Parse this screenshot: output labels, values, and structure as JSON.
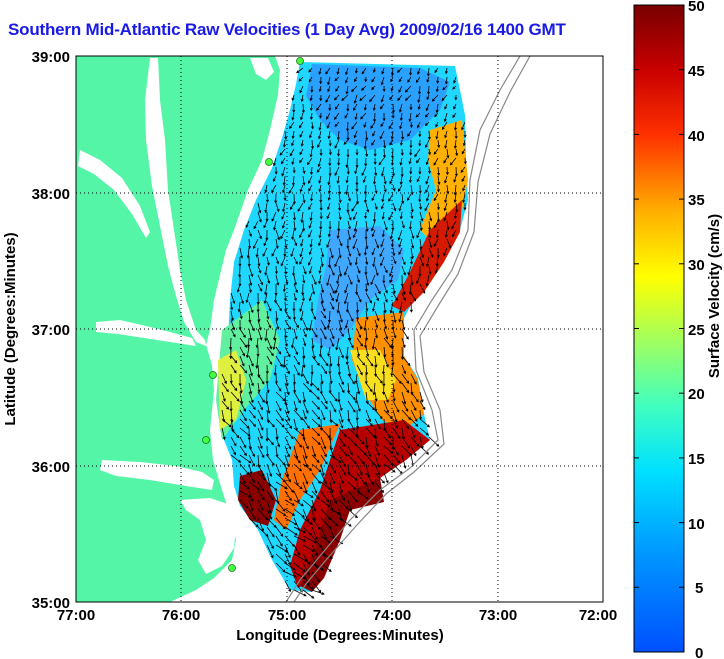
{
  "title": "Southern Mid-Atlantic Raw Velocities (1 Day Avg) 2009/02/16 1400 GMT",
  "map": {
    "x_axis": {
      "label": "Longitude (Degrees:Minutes)",
      "ticks": [
        "77:00",
        "76:00",
        "75:00",
        "74:00",
        "73:00",
        "72:00"
      ]
    },
    "y_axis": {
      "label": "Latitude (Degrees:Minutes)",
      "ticks": [
        "39:00",
        "38:00",
        "37:00",
        "36:00",
        "35:00"
      ]
    },
    "land_color": "#55f5a8",
    "grid": "dotted"
  },
  "colorbar": {
    "label": "Surface Velocity (cm/s)",
    "ticks": [
      "50",
      "45",
      "40",
      "35",
      "30",
      "25",
      "20",
      "15",
      "10",
      "5",
      "0"
    ],
    "min": 0,
    "max": 50,
    "colors": [
      "#0050ff",
      "#00c8ff",
      "#40ffc0",
      "#c0ff40",
      "#ffd000",
      "#ff6000",
      "#e00000",
      "#780000"
    ]
  }
}
